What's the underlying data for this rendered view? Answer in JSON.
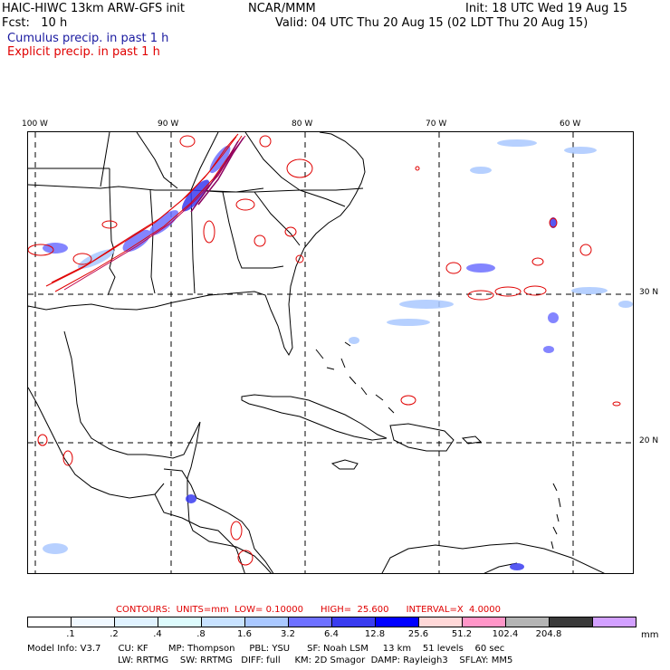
{
  "header": {
    "model": "HAIC-HIWC 13km ARW-GFS init",
    "org": "NCAR/MMM",
    "init": "Init: 18 UTC Wed 19 Aug 15",
    "fcst": "Fcst:   10 h",
    "valid": "Valid: 04 UTC Thu 20 Aug 15 (02 LDT Thu 20 Aug 15)",
    "cumulus": "Cumulus precip. in past 1 h",
    "explicit": "Explicit precip. in past 1 h"
  },
  "map": {
    "lon_labels": [
      "100 W",
      "90 W",
      "80 W",
      "70 W",
      "60 W"
    ],
    "lat_labels": [
      "30 N",
      "20 N"
    ]
  },
  "contours": {
    "label": "CONTOURS:  UNITS=mm  LOW= 0.10000      HIGH=  25.600      INTERVAL=X  4.0000"
  },
  "legend": {
    "units": "mm",
    "ticks": [
      ".1",
      ".2",
      ".4",
      ".8",
      "1.6",
      "3.2",
      "6.4",
      "12.8",
      "25.6",
      "51.2",
      "102.4",
      "204.8"
    ],
    "colors": [
      "#ffffff",
      "#f0f8ff",
      "#e0f2ff",
      "#ddfbfd",
      "#c8e2ff",
      "#aac8ff",
      "#6e70ff",
      "#3a3cf0",
      "#0000ff",
      "#ffd8d8",
      "#ff96c8",
      "#b4b4b4",
      "#3a3a3a",
      "#d2a0ff"
    ]
  },
  "footer": {
    "line1": "Model Info: V3.7      CU: KF       MP: Thompson     PBL: YSU      SF: Noah LSM     13 km    51 levels    60 sec",
    "line2": "LW: RRTMG    SW: RRTMG   DIFF: full     KM: 2D Smagor  DAMP: Rayleigh3    SFLAY: MM5"
  }
}
